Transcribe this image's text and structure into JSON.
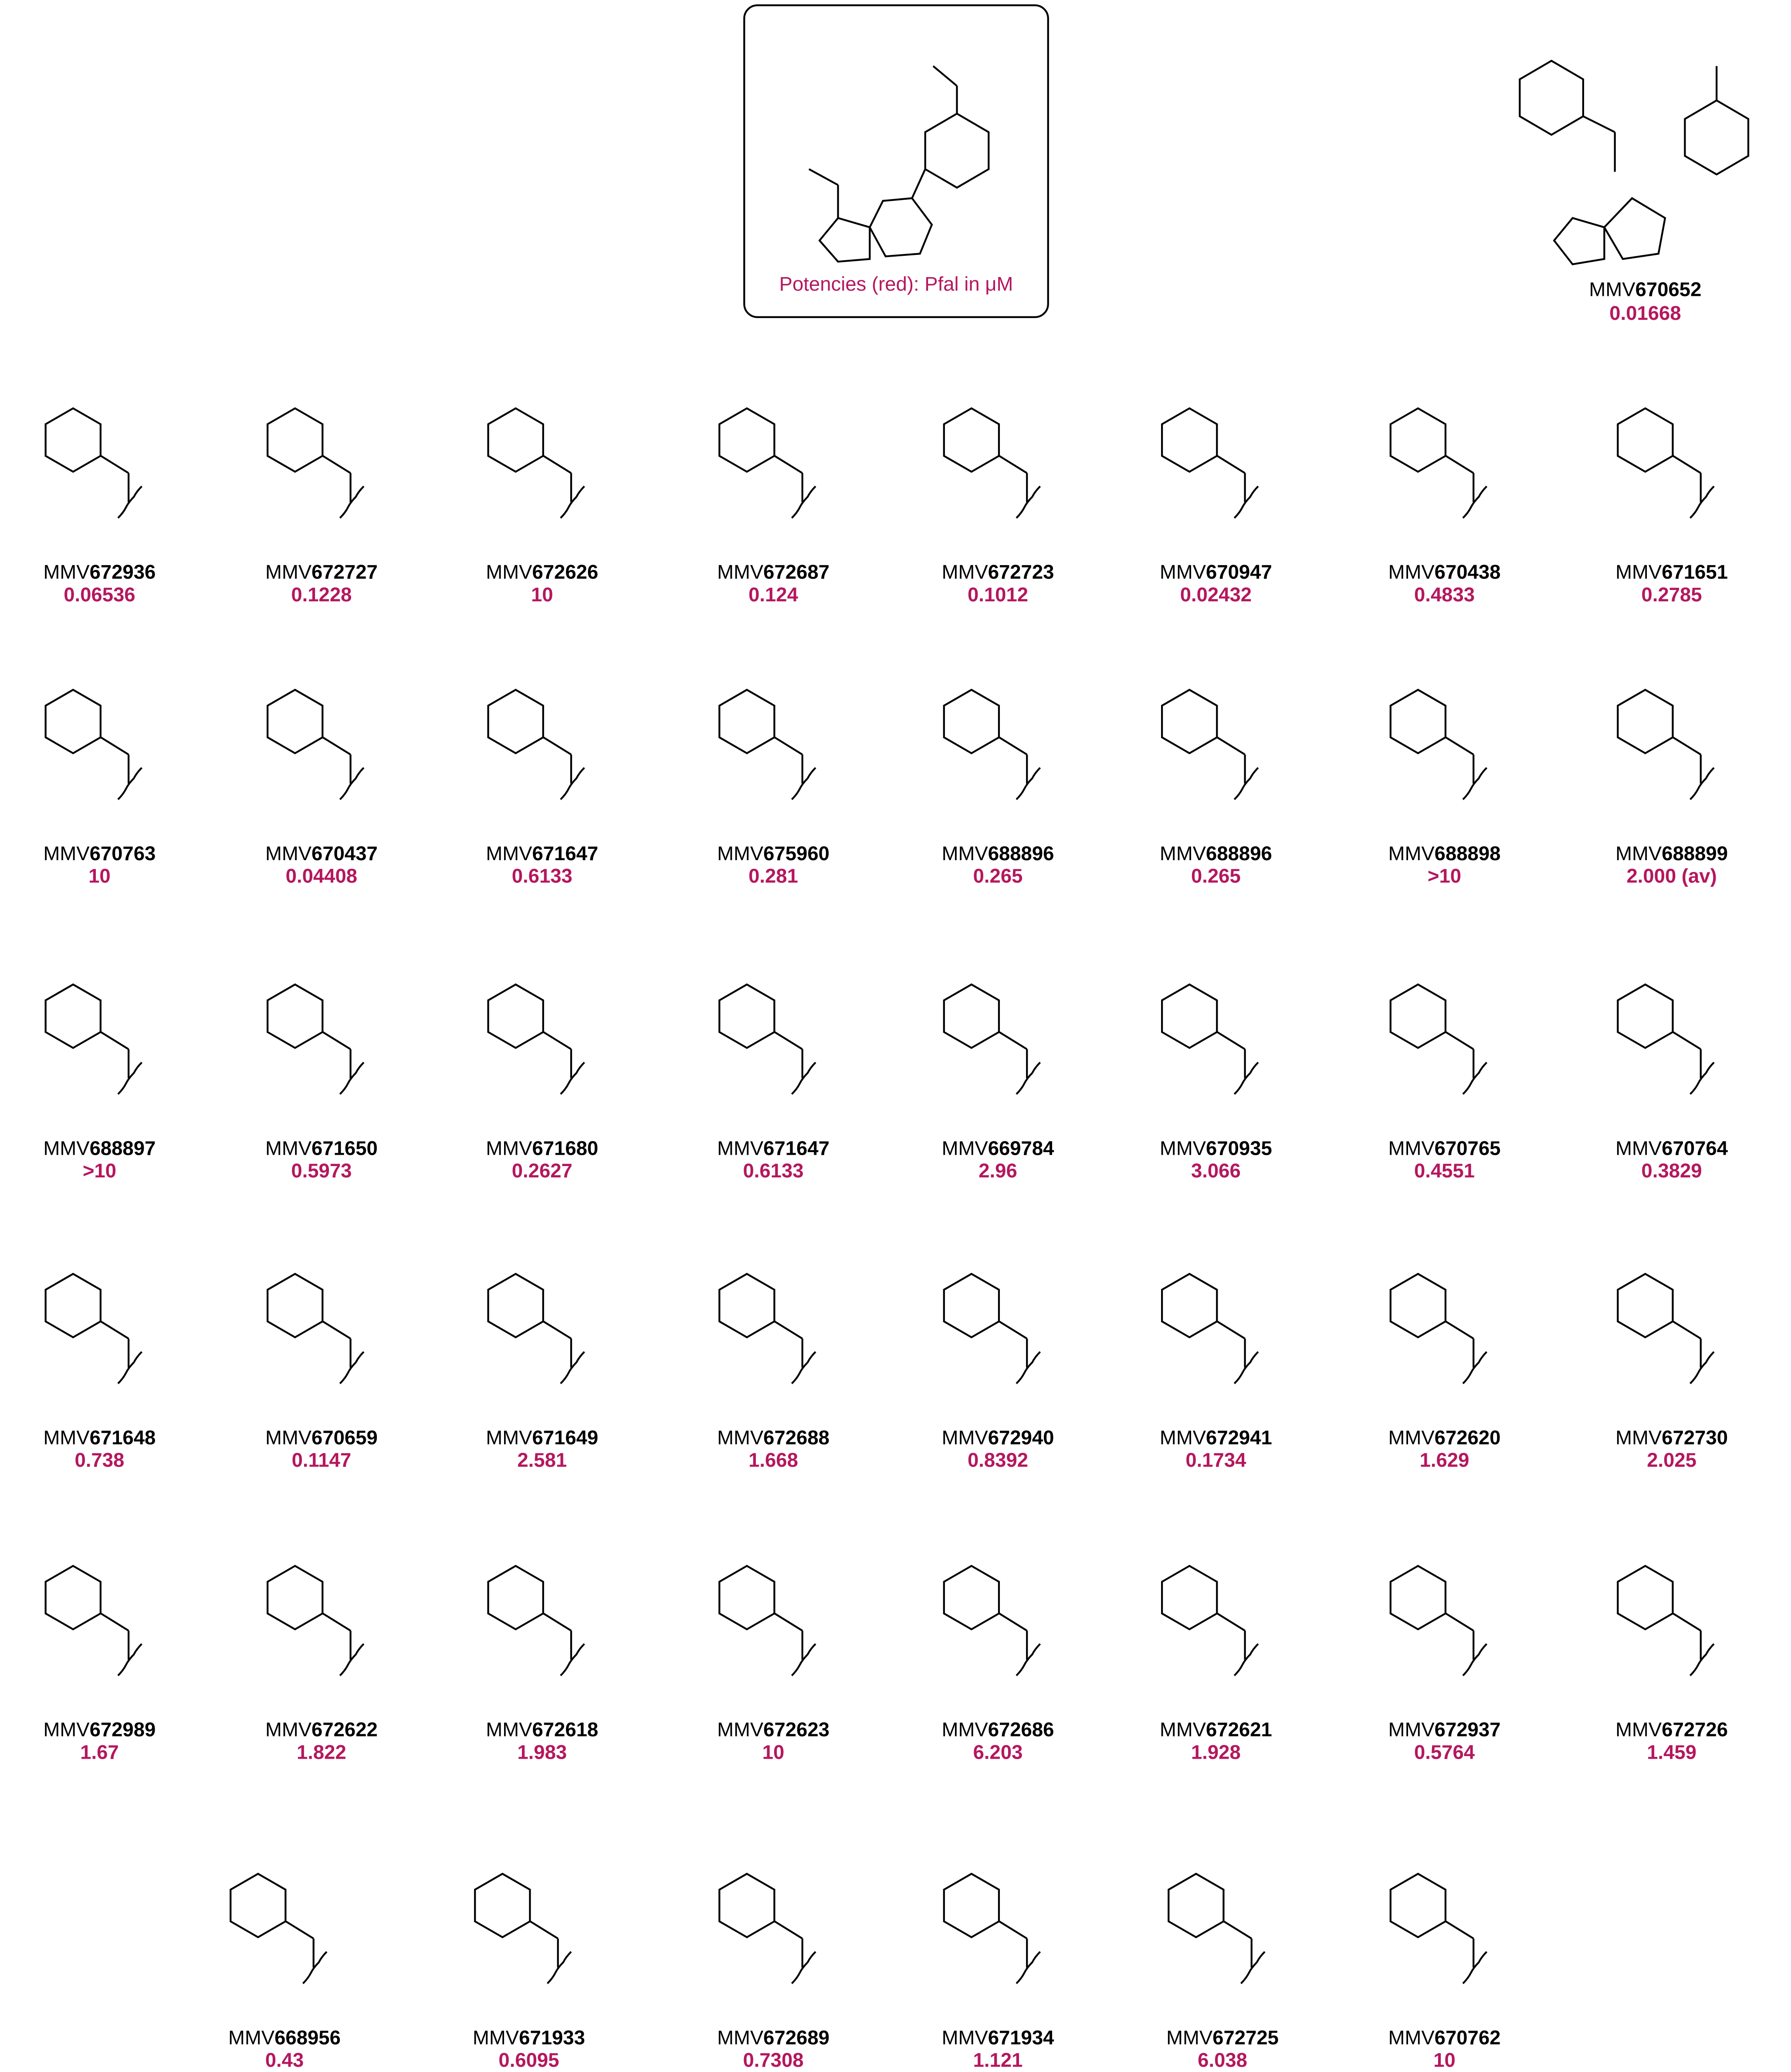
{
  "legend_box": {
    "caption": "Potencies (red): Pfal in μM"
  },
  "reference": {
    "id": [
      "MMV",
      "670652"
    ],
    "potency": "0.01668"
  },
  "rows": [
    [
      {
        "id": [
          "MMV",
          "672936"
        ],
        "potency": "0.06536"
      },
      {
        "id": [
          "MMV",
          "672727"
        ],
        "potency": "0.1228"
      },
      {
        "id": [
          "MMV",
          "672626"
        ],
        "potency": "10"
      },
      {
        "id": [
          "MMV",
          "672687"
        ],
        "potency": "0.124"
      },
      {
        "id": [
          "MMV",
          "672723"
        ],
        "potency": "0.1012"
      },
      {
        "id": [
          "MMV",
          "670947"
        ],
        "potency": "0.02432"
      },
      {
        "id": [
          "MMV",
          "670438"
        ],
        "potency": "0.4833"
      },
      {
        "id": [
          "MMV",
          "671651"
        ],
        "potency": "0.2785"
      }
    ],
    [
      {
        "id": [
          "MMV",
          "670763"
        ],
        "potency": "10"
      },
      {
        "id": [
          "MMV",
          "670437"
        ],
        "potency": "0.04408"
      },
      {
        "id": [
          "MMV",
          "671647"
        ],
        "potency": "0.6133"
      },
      {
        "id": [
          "MMV",
          "675960"
        ],
        "potency": "0.281"
      },
      {
        "id": [
          "MMV",
          "688896"
        ],
        "potency": "0.265"
      },
      {
        "id": [
          "MMV",
          "688896"
        ],
        "potency": "0.265"
      },
      {
        "id": [
          "MMV",
          "688898"
        ],
        "potency": ">10"
      },
      {
        "id": [
          "MMV",
          "688899"
        ],
        "potency": "2.000 (av)"
      }
    ],
    [
      {
        "id": [
          "MMV",
          "688897"
        ],
        "potency": ">10"
      },
      {
        "id": [
          "MMV",
          "671650"
        ],
        "potency": "0.5973"
      },
      {
        "id": [
          "MMV",
          "671680"
        ],
        "potency": "0.2627"
      },
      {
        "id": [
          "MMV",
          "671647"
        ],
        "potency": "0.6133"
      },
      {
        "id": [
          "MMV",
          "669784"
        ],
        "potency": "2.96"
      },
      {
        "id": [
          "MMV",
          "670935"
        ],
        "potency": "3.066"
      },
      {
        "id": [
          "MMV",
          "670765"
        ],
        "potency": "0.4551"
      },
      {
        "id": [
          "MMV",
          "670764"
        ],
        "potency": "0.3829"
      }
    ],
    [
      {
        "id": [
          "MMV",
          "671648"
        ],
        "potency": "0.738"
      },
      {
        "id": [
          "MMV",
          "670659"
        ],
        "potency": "0.1147"
      },
      {
        "id": [
          "MMV",
          "671649"
        ],
        "potency": "2.581"
      },
      {
        "id": [
          "MMV",
          "672688"
        ],
        "potency": "1.668"
      },
      {
        "id": [
          "MMV",
          "672940"
        ],
        "potency": "0.8392"
      },
      {
        "id": [
          "MMV",
          "672941"
        ],
        "potency": "0.1734"
      },
      {
        "id": [
          "MMV",
          "672620"
        ],
        "potency": "1.629"
      },
      {
        "id": [
          "MMV",
          "672730"
        ],
        "potency": "2.025"
      }
    ],
    [
      {
        "id": [
          "MMV",
          "672989"
        ],
        "potency": "1.67"
      },
      {
        "id": [
          "MMV",
          "672622"
        ],
        "potency": "1.822"
      },
      {
        "id": [
          "MMV",
          "672618"
        ],
        "potency": "1.983"
      },
      {
        "id": [
          "MMV",
          "672623"
        ],
        "potency": "10"
      },
      {
        "id": [
          "MMV",
          "672686"
        ],
        "potency": "6.203"
      },
      {
        "id": [
          "MMV",
          "672621"
        ],
        "potency": "1.928"
      },
      {
        "id": [
          "MMV",
          "672937"
        ],
        "potency": "0.5764"
      },
      {
        "id": [
          "MMV",
          "672726"
        ],
        "potency": "1.459"
      }
    ],
    [
      {
        "id": [
          "MMV",
          "668956"
        ],
        "potency": "0.43"
      },
      {
        "id": [
          "MMV",
          "671933"
        ],
        "potency": "0.6095"
      },
      {
        "id": [
          "MMV",
          "672689"
        ],
        "potency": "0.7308"
      },
      {
        "id": [
          "MMV",
          "671934"
        ],
        "potency": "1.121"
      },
      {
        "id": [
          "MMV",
          "672725"
        ],
        "potency": "6.038"
      },
      {
        "id": [
          "MMV",
          "670762"
        ],
        "potency": "10"
      }
    ]
  ]
}
